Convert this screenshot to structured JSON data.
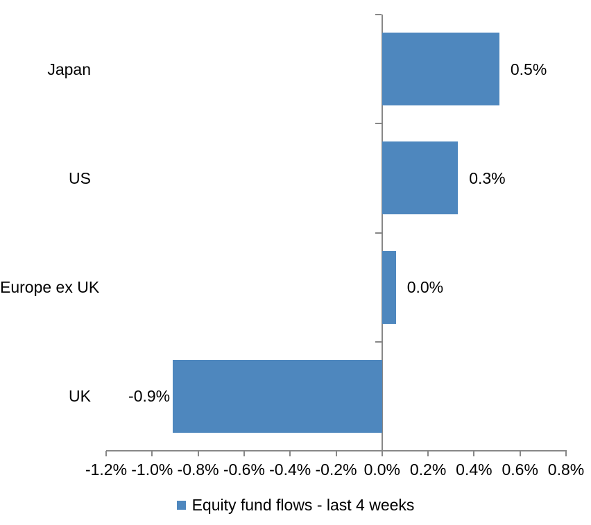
{
  "chart_data": {
    "type": "bar",
    "orientation": "horizontal",
    "categories": [
      "Japan",
      "US",
      "Europe ex UK",
      "UK"
    ],
    "series": [
      {
        "name": "Equity fund flows - last 4 weeks",
        "values": [
          0.5,
          0.3,
          0.0,
          -0.9
        ],
        "values_precise": [
          0.51,
          0.33,
          0.06,
          -0.91
        ],
        "data_labels": [
          "0.5%",
          "0.3%",
          "0.0%",
          "-0.9%"
        ],
        "color": "#4E87BE"
      }
    ],
    "x_axis": {
      "min": -1.2,
      "max": 0.8,
      "step": 0.2,
      "tick_values": [
        -1.2,
        -1.0,
        -0.8,
        -0.6,
        -0.4,
        -0.2,
        0.0,
        0.2,
        0.4,
        0.6,
        0.8
      ],
      "tick_labels": [
        "-1.2%",
        "-1.0%",
        "-0.8%",
        "-0.6%",
        "-0.4%",
        "-0.2%",
        "0.0%",
        "0.2%",
        "0.4%",
        "0.6%",
        "0.8%"
      ],
      "category_axis_crosses_at": 0.0
    },
    "grid": false,
    "legend_position": "bottom-center",
    "axis_color": "#878787",
    "text_color": "#000000",
    "background": "#FFFFFF"
  }
}
